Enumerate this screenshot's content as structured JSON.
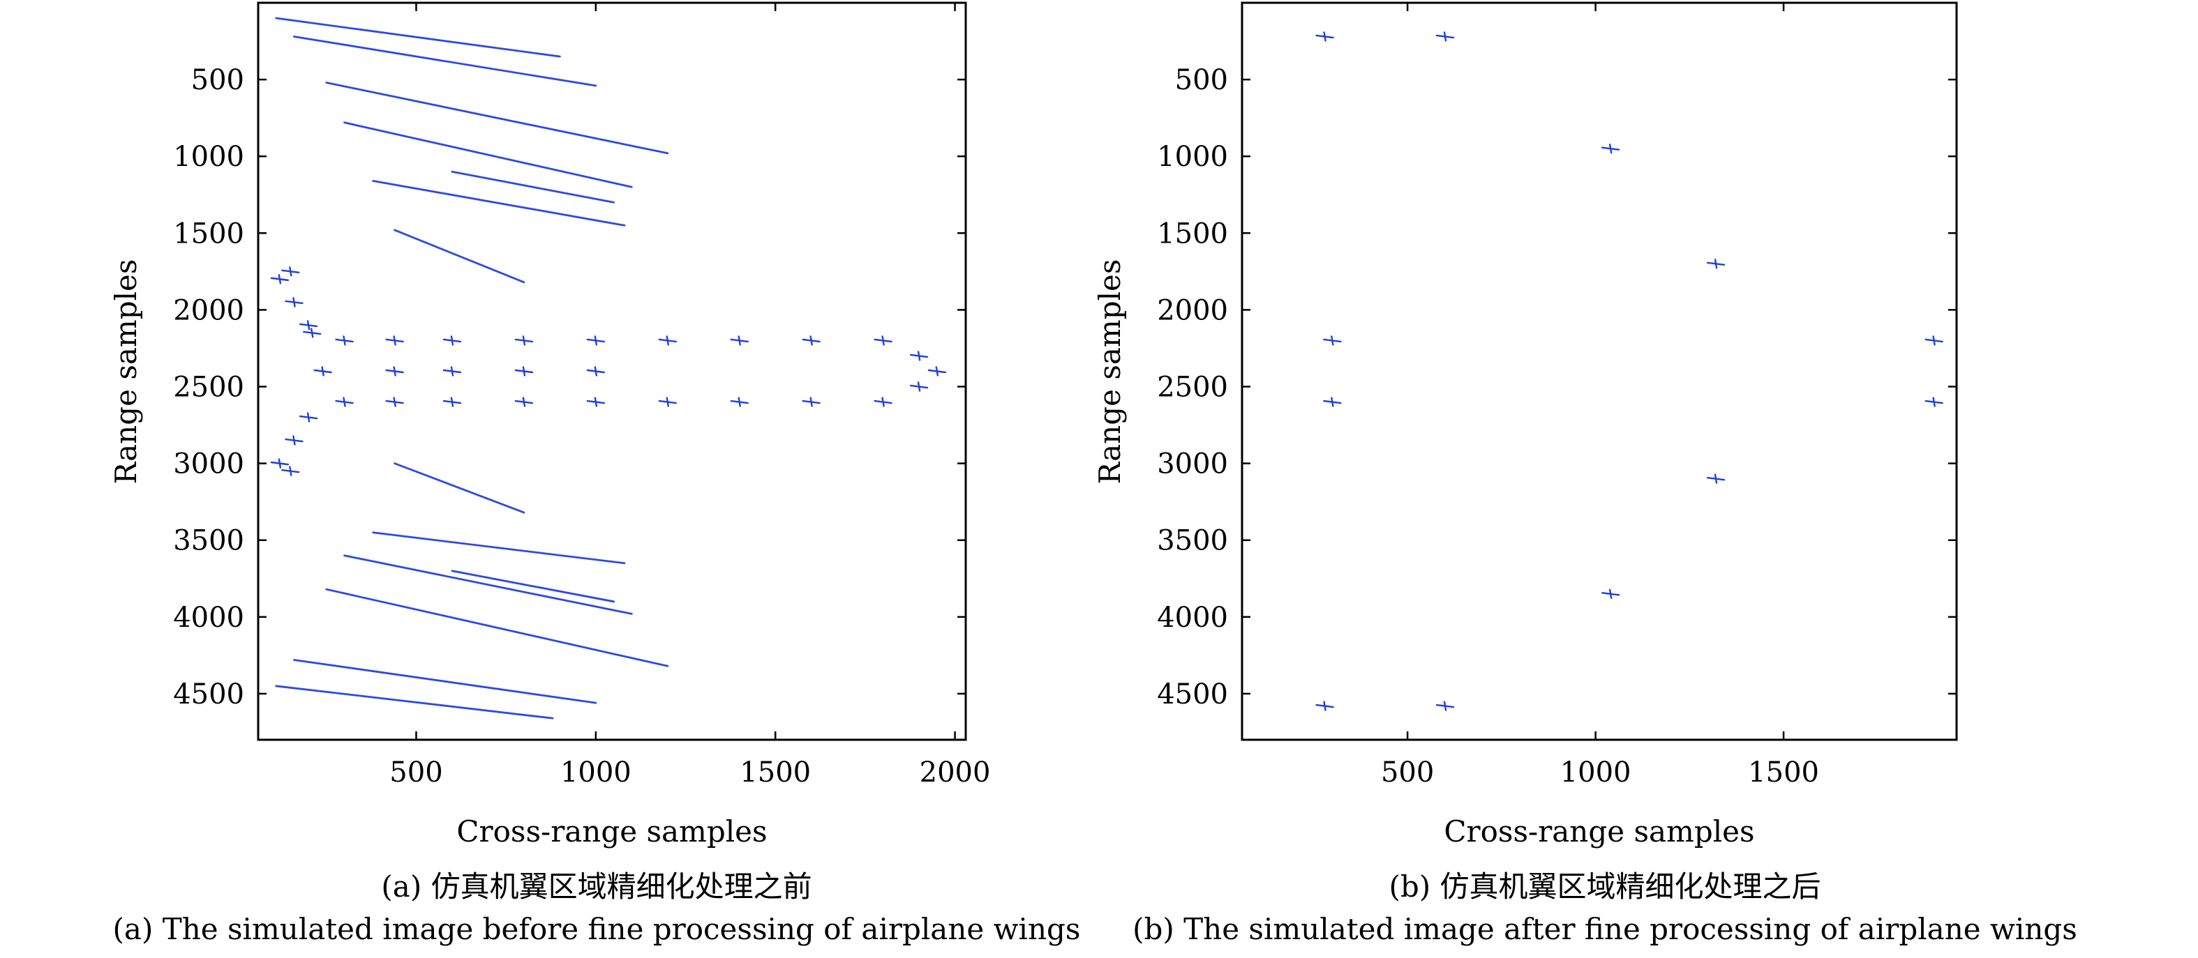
{
  "colors": {
    "scatterer": "#1f3fe0",
    "streak": "#2b49e8",
    "axis": "#000000"
  },
  "panels": [
    {
      "caption_zh": "(a) 仿真机翼区域精细化处理之前",
      "caption_en": "(a) The simulated image before fine processing of airplane wings",
      "chart_data": {
        "type": "scatter",
        "title": "",
        "xlabel": "Cross-range samples",
        "ylabel": "Range samples",
        "xlim": [
          60,
          2030
        ],
        "ylim": [
          4800,
          0
        ],
        "xticks": [
          500,
          1000,
          1500,
          2000
        ],
        "yticks": [
          500,
          1000,
          1500,
          2000,
          2500,
          3000,
          3500,
          4000,
          4500
        ],
        "grid": false,
        "legend": "none",
        "marker": "plus",
        "series": [
          {
            "role": "fuselage",
            "points": [
              [
                210,
                2150
              ],
              [
                300,
                2200
              ],
              [
                440,
                2200
              ],
              [
                600,
                2200
              ],
              [
                800,
                2200
              ],
              [
                1000,
                2200
              ],
              [
                1200,
                2200
              ],
              [
                1400,
                2200
              ],
              [
                1600,
                2200
              ],
              [
                1800,
                2200
              ],
              [
                300,
                2600
              ],
              [
                440,
                2600
              ],
              [
                600,
                2600
              ],
              [
                800,
                2600
              ],
              [
                1000,
                2600
              ],
              [
                1200,
                2600
              ],
              [
                1400,
                2600
              ],
              [
                1600,
                2600
              ],
              [
                1800,
                2600
              ],
              [
                1900,
                2300
              ],
              [
                1950,
                2400
              ],
              [
                1900,
                2500
              ],
              [
                440,
                2400
              ],
              [
                600,
                2400
              ],
              [
                800,
                2400
              ],
              [
                1000,
                2400
              ]
            ]
          },
          {
            "role": "tail",
            "points": [
              [
                120,
                1800
              ],
              [
                150,
                1750
              ],
              [
                160,
                1950
              ],
              [
                200,
                2100
              ],
              [
                240,
                2400
              ],
              [
                120,
                3000
              ],
              [
                150,
                3050
              ],
              [
                160,
                2850
              ],
              [
                200,
                2700
              ]
            ]
          },
          {
            "role": "wing-streaks",
            "segments": [
              [
                [
                  110,
                  100
                ],
                [
                  900,
                  350
                ]
              ],
              [
                [
                  160,
                  220
                ],
                [
                  1000,
                  540
                ]
              ],
              [
                [
                  250,
                  520
                ],
                [
                  1200,
                  980
                ]
              ],
              [
                [
                  300,
                  780
                ],
                [
                  1100,
                  1200
                ]
              ],
              [
                [
                  380,
                  1160
                ],
                [
                  1080,
                  1450
                ]
              ],
              [
                [
                  440,
                  1480
                ],
                [
                  800,
                  1820
                ]
              ],
              [
                [
                  600,
                  1100
                ],
                [
                  1050,
                  1300
                ]
              ],
              [
                [
                  110,
                  4450
                ],
                [
                  880,
                  4660
                ]
              ],
              [
                [
                  160,
                  4280
                ],
                [
                  1000,
                  4560
                ]
              ],
              [
                [
                  250,
                  3820
                ],
                [
                  1200,
                  4320
                ]
              ],
              [
                [
                  300,
                  3600
                ],
                [
                  1100,
                  3980
                ]
              ],
              [
                [
                  380,
                  3450
                ],
                [
                  1080,
                  3650
                ]
              ],
              [
                [
                  440,
                  3000
                ],
                [
                  800,
                  3320
                ]
              ],
              [
                [
                  600,
                  3700
                ],
                [
                  1050,
                  3900
                ]
              ]
            ]
          }
        ]
      }
    },
    {
      "caption_zh": "(b) 仿真机翼区域精细化处理之后",
      "caption_en": "(b) The simulated image after fine processing of airplane wings",
      "chart_data": {
        "type": "scatter",
        "title": "",
        "xlabel": "Cross-range samples",
        "ylabel": "Range samples",
        "xlim": [
          60,
          1960
        ],
        "ylim": [
          4800,
          0
        ],
        "xticks": [
          500,
          1000,
          1500
        ],
        "yticks": [
          500,
          1000,
          1500,
          2000,
          2500,
          3000,
          3500,
          4000,
          4500
        ],
        "grid": false,
        "legend": "none",
        "marker": "plus",
        "series": [
          {
            "role": "fuselage",
            "points": [
              [
                300,
                2200
              ],
              [
                1900,
                2200
              ],
              [
                300,
                2600
              ],
              [
                1900,
                2600
              ]
            ]
          },
          {
            "role": "wing-outline",
            "points": [
              [
                280,
                220
              ],
              [
                600,
                220
              ],
              [
                1040,
                950
              ],
              [
                1320,
                1700
              ],
              [
                280,
                4580
              ],
              [
                600,
                4580
              ],
              [
                1040,
                3850
              ],
              [
                1320,
                3100
              ]
            ]
          }
        ]
      }
    }
  ]
}
